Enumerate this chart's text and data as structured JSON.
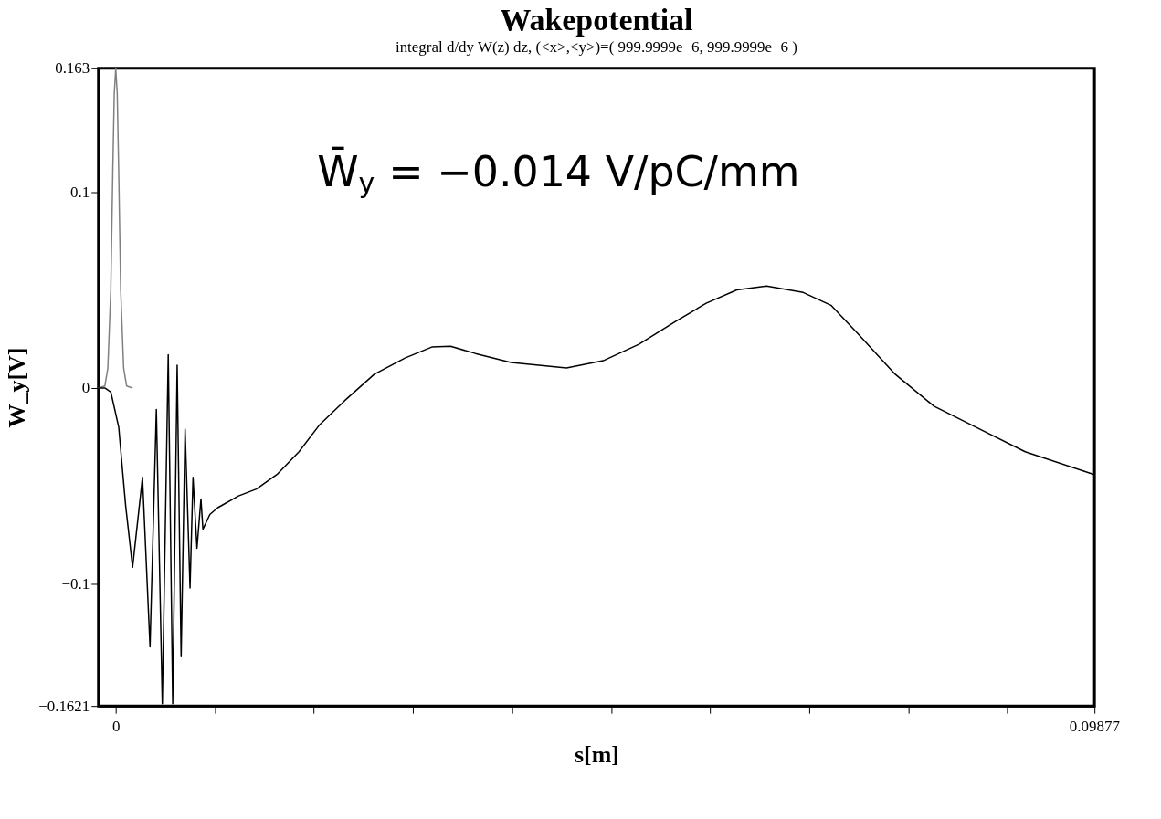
{
  "chart_data": {
    "type": "line",
    "title": "Wakepotential",
    "subtitle": "integral d/dy W(z) dz, (<x>,<y>)=( 999.9999e−6, 999.9999e−6 )",
    "xlabel": "s[m]",
    "ylabel": "W_y[V]",
    "annotations": [
      "W̄$_{y}$ = −0.014 V/pC/mm"
    ],
    "xlim": [
      -0.00175,
      0.0988
    ],
    "ylim": [
      -0.1621,
      0.163
    ],
    "xticks": [
      0,
      {
        "value": 0.01,
        "label": null
      },
      {
        "value": 0.02,
        "label": null
      },
      {
        "value": 0.03,
        "label": null
      },
      {
        "value": 0.04,
        "label": null
      },
      {
        "value": 0.05,
        "label": null
      },
      {
        "value": 0.06,
        "label": null
      },
      {
        "value": 0.07,
        "label": null
      },
      {
        "value": 0.08,
        "label": null
      },
      {
        "value": 0.09,
        "label": null
      },
      0.09877
    ],
    "yticks": [
      0.163,
      0.1,
      0,
      {
        "value": -0.1,
        "label": "−0.1"
      },
      {
        "value": -0.1621,
        "label": "−0.1621"
      }
    ],
    "grid": false,
    "legend": false,
    "line_style": "solid",
    "marker": "none",
    "series": [
      {
        "color": "#808080",
        "x": [
          -0.00175,
          -0.0011,
          -0.0008,
          -0.0005,
          -0.0003,
          -0.00015,
          0,
          0.00015,
          0.0003,
          0.0005,
          0.0008,
          0.0011,
          0.0017
        ],
        "values": [
          0,
          0.001,
          0.01,
          0.05,
          0.11,
          0.15,
          0.163,
          0.15,
          0.11,
          0.05,
          0.01,
          0.001,
          0
        ]
      },
      {
        "color": "#000000",
        "x": [
          -0.00175,
          -0.0011,
          -0.0005,
          0.0003,
          0.001,
          0.0017,
          0.0027,
          0.00346,
          0.0041,
          0.0047,
          0.0053,
          0.00575,
          0.0062,
          0.0066,
          0.007,
          0.0075,
          0.0078,
          0.0082,
          0.0086,
          0.0088,
          0.0095,
          0.0103,
          0.0124,
          0.0142,
          0.0163,
          0.0185,
          0.0206,
          0.0231,
          0.0261,
          0.0292,
          0.0319,
          0.0338,
          0.0363,
          0.0399,
          0.0455,
          0.0492,
          0.0528,
          0.0565,
          0.0596,
          0.0627,
          0.0657,
          0.0694,
          0.0722,
          0.0749,
          0.0786,
          0.0826,
          0.0872,
          0.0918,
          0.0987
        ],
        "values": [
          0,
          0,
          -0.002,
          -0.02,
          -0.06,
          -0.0914,
          -0.0455,
          -0.132,
          -0.011,
          -0.161,
          0.017,
          -0.161,
          0.0116,
          -0.137,
          -0.021,
          -0.102,
          -0.0455,
          -0.0817,
          -0.0566,
          -0.072,
          -0.0645,
          -0.061,
          -0.055,
          -0.0515,
          -0.044,
          -0.0325,
          -0.0186,
          -0.0065,
          0.007,
          0.0153,
          0.0209,
          0.0213,
          0.0176,
          0.013,
          0.0102,
          0.0139,
          0.0223,
          0.0339,
          0.0432,
          0.05,
          0.052,
          0.0487,
          0.0422,
          0.0278,
          0.0074,
          -0.0093,
          -0.0209,
          -0.0325,
          -0.044
        ]
      }
    ]
  }
}
